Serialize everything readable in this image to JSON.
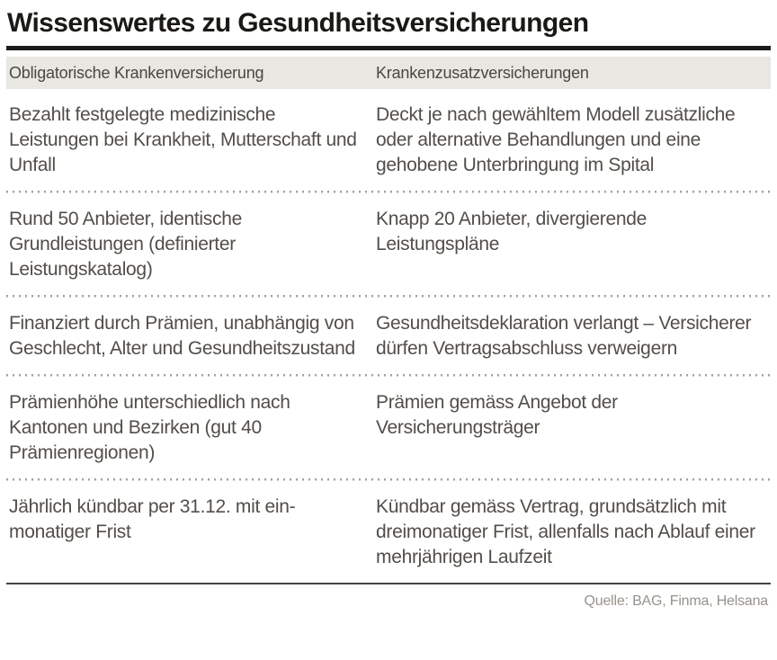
{
  "title": "Wissenswertes zu Gesundheitsversicherungen",
  "source": "Quelle: BAG, Finma, Helsana",
  "colors": {
    "header_band": "#e8e7e1",
    "title_and_rule": "#1d1b18",
    "body_text": "#524e49",
    "dotted_separator": "#a5a19a",
    "bottom_rule": "#474440",
    "source_text": "#97928b"
  },
  "chart_data": {
    "type": "table",
    "title": "Wissenswertes zu Gesundheitsversicherungen",
    "columns": [
      "Obligatorische Krankenversicherung",
      "Krankenzusatzversicherungen"
    ],
    "rows": [
      [
        "Bezahlt festgelegte medizinische Leistungen bei Krankheit, Mutterschaft und Unfall",
        "Deckt je nach gewähltem Modell zusätzliche oder alternative Behandlungen und eine gehobene Unterbringung im Spital"
      ],
      [
        "Rund 50 Anbieter, identische Grundleistungen (definierter Leistungskatalog)",
        "Knapp 20 Anbieter, divergierende Leistungspläne"
      ],
      [
        "Finanziert durch Prämien, unabhängig von Geschlecht, Alter und Gesundheitszustand",
        "Gesundheitsdeklaration verlangt – Versicherer dürfen Vertragsabschluss verweigern"
      ],
      [
        "Prämienhöhe unterschiedlich nach Kantonen und Bezirken (gut 40 Prämienregionen)",
        "Prämien gemäss Angebot der Versicherungsträger"
      ],
      [
        "Jährlich kündbar per 31.12. mit ein-monatiger Frist",
        "Kündbar gemäss Vertrag, grundsätzlich mit dreimonatiger Frist, allenfalls nach Ablauf einer mehrjährigen Laufzeit"
      ]
    ],
    "source": "Quelle: BAG, Finma, Helsana",
    "layout": {
      "legend": "none",
      "grid": "dotted horizontal separators between rows"
    }
  }
}
